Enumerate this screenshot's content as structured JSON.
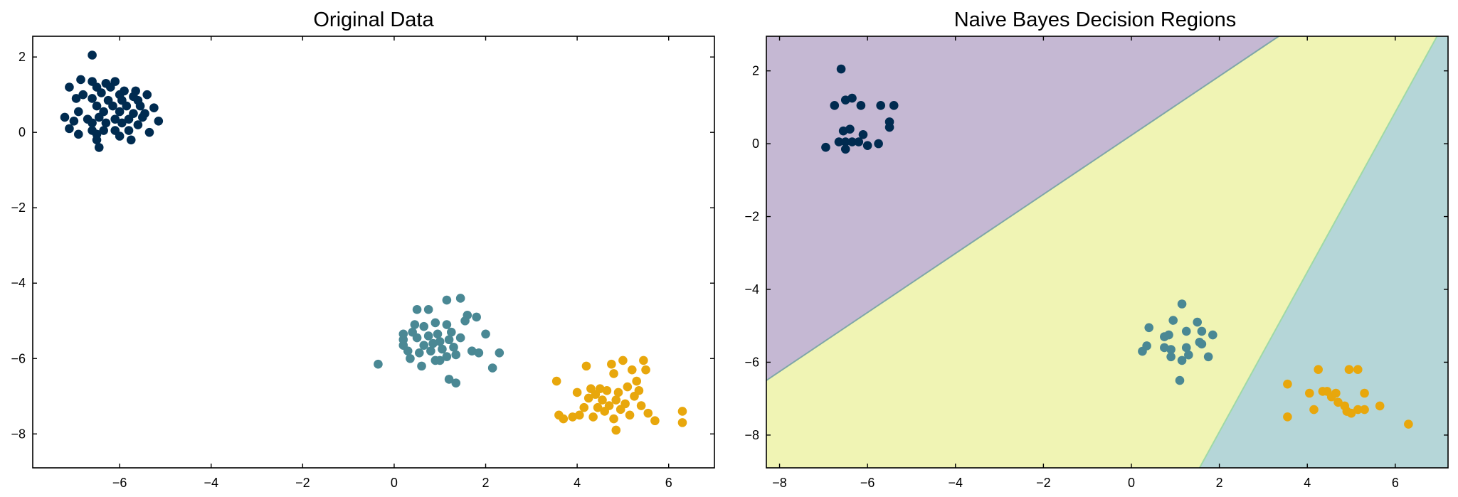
{
  "chart_data": [
    {
      "type": "scatter",
      "title": "Original Data",
      "xlabel": "",
      "ylabel": "",
      "xlim": [
        -7.9,
        7.0
      ],
      "ylim": [
        -8.9,
        2.55
      ],
      "xticks": [
        -6,
        -4,
        -2,
        0,
        2,
        4,
        6
      ],
      "yticks": [
        -8,
        -6,
        -4,
        -2,
        0,
        2
      ],
      "xtick_labels": [
        "−6",
        "−4",
        "−2",
        "0",
        "2",
        "4",
        "6"
      ],
      "ytick_labels": [
        "−8",
        "−6",
        "−4",
        "−2",
        "0",
        "2"
      ],
      "grid": false,
      "series": [
        {
          "color": "#002b50",
          "points": [
            [
              -6.6,
              2.05
            ],
            [
              -7.1,
              1.2
            ],
            [
              -6.85,
              1.4
            ],
            [
              -6.6,
              1.35
            ],
            [
              -6.3,
              1.3
            ],
            [
              -6.1,
              1.35
            ],
            [
              -6.5,
              1.2
            ],
            [
              -6.2,
              1.2
            ],
            [
              -5.9,
              1.1
            ],
            [
              -5.65,
              1.1
            ],
            [
              -5.4,
              1.0
            ],
            [
              -6.8,
              1.0
            ],
            [
              -6.4,
              1.05
            ],
            [
              -6.0,
              1.0
            ],
            [
              -5.7,
              0.95
            ],
            [
              -6.95,
              0.9
            ],
            [
              -6.6,
              0.9
            ],
            [
              -6.25,
              0.85
            ],
            [
              -5.95,
              0.85
            ],
            [
              -5.6,
              0.85
            ],
            [
              -6.5,
              0.7
            ],
            [
              -6.15,
              0.7
            ],
            [
              -5.85,
              0.7
            ],
            [
              -5.55,
              0.7
            ],
            [
              -5.25,
              0.65
            ],
            [
              -6.9,
              0.55
            ],
            [
              -6.35,
              0.55
            ],
            [
              -6.0,
              0.55
            ],
            [
              -5.7,
              0.5
            ],
            [
              -5.45,
              0.5
            ],
            [
              -7.2,
              0.4
            ],
            [
              -6.7,
              0.35
            ],
            [
              -6.45,
              0.4
            ],
            [
              -6.1,
              0.35
            ],
            [
              -5.8,
              0.35
            ],
            [
              -5.5,
              0.4
            ],
            [
              -7.0,
              0.3
            ],
            [
              -6.6,
              0.25
            ],
            [
              -6.3,
              0.25
            ],
            [
              -5.95,
              0.25
            ],
            [
              -5.6,
              0.2
            ],
            [
              -5.15,
              0.3
            ],
            [
              -7.1,
              0.1
            ],
            [
              -6.6,
              0.05
            ],
            [
              -6.35,
              0.05
            ],
            [
              -6.1,
              0.05
            ],
            [
              -5.8,
              0.05
            ],
            [
              -5.35,
              0.0
            ],
            [
              -6.9,
              -0.05
            ],
            [
              -6.5,
              -0.05
            ],
            [
              -6.0,
              -0.1
            ],
            [
              -5.75,
              -0.2
            ],
            [
              -6.5,
              -0.2
            ],
            [
              -6.45,
              -0.4
            ]
          ]
        },
        {
          "color": "#4a8894",
          "points": [
            [
              -0.35,
              -6.15
            ],
            [
              0.2,
              -5.35
            ],
            [
              0.4,
              -5.3
            ],
            [
              0.2,
              -5.5
            ],
            [
              0.2,
              -5.65
            ],
            [
              0.3,
              -5.8
            ],
            [
              0.35,
              -6.0
            ],
            [
              0.5,
              -4.7
            ],
            [
              0.75,
              -4.7
            ],
            [
              0.45,
              -5.1
            ],
            [
              0.65,
              -5.15
            ],
            [
              0.9,
              -5.05
            ],
            [
              1.15,
              -5.1
            ],
            [
              0.5,
              -5.45
            ],
            [
              0.75,
              -5.4
            ],
            [
              0.95,
              -5.35
            ],
            [
              1.25,
              -5.3
            ],
            [
              0.65,
              -5.65
            ],
            [
              0.85,
              -5.6
            ],
            [
              1.0,
              -5.55
            ],
            [
              1.2,
              -5.5
            ],
            [
              1.45,
              -5.45
            ],
            [
              0.55,
              -5.85
            ],
            [
              0.8,
              -5.8
            ],
            [
              1.05,
              -5.75
            ],
            [
              1.3,
              -5.7
            ],
            [
              0.6,
              -6.2
            ],
            [
              0.9,
              -6.05
            ],
            [
              1.15,
              -5.95
            ],
            [
              1.35,
              -5.9
            ],
            [
              1.15,
              -4.45
            ],
            [
              1.45,
              -4.4
            ],
            [
              1.6,
              -4.85
            ],
            [
              1.8,
              -4.9
            ],
            [
              2.0,
              -5.35
            ],
            [
              1.55,
              -5.0
            ],
            [
              1.2,
              -6.55
            ],
            [
              1.35,
              -6.65
            ],
            [
              1.7,
              -5.8
            ],
            [
              1.85,
              -5.85
            ],
            [
              2.3,
              -5.85
            ],
            [
              2.15,
              -6.25
            ],
            [
              1.0,
              -6.05
            ]
          ]
        },
        {
          "color": "#e8a70c",
          "points": [
            [
              3.55,
              -6.6
            ],
            [
              3.6,
              -7.5
            ],
            [
              3.7,
              -7.6
            ],
            [
              3.9,
              -7.55
            ],
            [
              4.0,
              -6.9
            ],
            [
              4.05,
              -7.5
            ],
            [
              4.15,
              -7.3
            ],
            [
              4.2,
              -6.2
            ],
            [
              4.25,
              -7.05
            ],
            [
              4.3,
              -6.8
            ],
            [
              4.35,
              -7.55
            ],
            [
              4.4,
              -6.95
            ],
            [
              4.45,
              -7.3
            ],
            [
              4.5,
              -6.8
            ],
            [
              4.55,
              -7.1
            ],
            [
              4.6,
              -7.4
            ],
            [
              4.65,
              -6.85
            ],
            [
              4.7,
              -7.25
            ],
            [
              4.75,
              -6.15
            ],
            [
              4.8,
              -6.4
            ],
            [
              4.8,
              -7.6
            ],
            [
              4.85,
              -7.1
            ],
            [
              4.9,
              -6.9
            ],
            [
              4.95,
              -7.35
            ],
            [
              5.0,
              -6.05
            ],
            [
              5.05,
              -7.2
            ],
            [
              5.1,
              -6.75
            ],
            [
              5.15,
              -7.5
            ],
            [
              5.2,
              -6.3
            ],
            [
              5.25,
              -7.0
            ],
            [
              5.3,
              -6.6
            ],
            [
              5.35,
              -6.85
            ],
            [
              5.4,
              -7.25
            ],
            [
              5.45,
              -6.05
            ],
            [
              5.5,
              -6.3
            ],
            [
              5.55,
              -7.45
            ],
            [
              5.7,
              -7.65
            ],
            [
              4.85,
              -7.9
            ],
            [
              6.3,
              -7.4
            ],
            [
              6.3,
              -7.7
            ]
          ]
        }
      ]
    },
    {
      "type": "scatter",
      "title": "Naive Bayes Decision Regions",
      "xlabel": "",
      "ylabel": "",
      "xlim": [
        -8.3,
        7.2
      ],
      "ylim": [
        -8.9,
        2.95
      ],
      "xticks": [
        -8,
        -6,
        -4,
        -2,
        0,
        2,
        4,
        6
      ],
      "yticks": [
        -8,
        -6,
        -4,
        -2,
        0,
        2
      ],
      "xtick_labels": [
        "−8",
        "−6",
        "−4",
        "−2",
        "0",
        "2",
        "4",
        "6"
      ],
      "ytick_labels": [
        "−8",
        "−6",
        "−4",
        "−2",
        "0",
        "2"
      ],
      "grid": false,
      "regions": [
        {
          "class": 0,
          "color": "#c5b8d3"
        },
        {
          "class": 1,
          "color": "#f0f4b4"
        },
        {
          "class": 2,
          "color": "#b5d6d8"
        }
      ],
      "boundaries": [
        [
          [
            -8.3,
            -6.5
          ],
          [
            3.35,
            2.95
          ]
        ],
        [
          [
            1.55,
            -8.9
          ],
          [
            6.95,
            2.95
          ]
        ]
      ],
      "series": [
        {
          "color": "#002b50",
          "points": [
            [
              -6.6,
              2.05
            ],
            [
              -6.5,
              1.2
            ],
            [
              -6.35,
              1.25
            ],
            [
              -6.15,
              1.05
            ],
            [
              -6.75,
              1.05
            ],
            [
              -5.7,
              1.05
            ],
            [
              -5.4,
              1.05
            ],
            [
              -5.5,
              0.6
            ],
            [
              -5.5,
              0.45
            ],
            [
              -6.55,
              0.35
            ],
            [
              -6.4,
              0.4
            ],
            [
              -6.65,
              0.05
            ],
            [
              -6.5,
              0.05
            ],
            [
              -6.35,
              0.05
            ],
            [
              -6.2,
              0.05
            ],
            [
              -6.1,
              0.25
            ],
            [
              -5.75,
              0.0
            ],
            [
              -6.0,
              -0.05
            ],
            [
              -6.95,
              -0.1
            ],
            [
              -6.5,
              -0.15
            ]
          ]
        },
        {
          "color": "#4a8894",
          "points": [
            [
              1.15,
              -4.4
            ],
            [
              0.4,
              -5.05
            ],
            [
              0.95,
              -4.85
            ],
            [
              1.5,
              -4.9
            ],
            [
              1.6,
              -5.15
            ],
            [
              1.25,
              -5.15
            ],
            [
              0.85,
              -5.25
            ],
            [
              0.75,
              -5.3
            ],
            [
              1.85,
              -5.25
            ],
            [
              1.55,
              -5.45
            ],
            [
              1.6,
              -5.5
            ],
            [
              0.25,
              -5.7
            ],
            [
              0.35,
              -5.55
            ],
            [
              0.75,
              -5.6
            ],
            [
              0.9,
              -5.65
            ],
            [
              1.25,
              -5.6
            ],
            [
              0.9,
              -5.85
            ],
            [
              1.3,
              -5.8
            ],
            [
              1.75,
              -5.85
            ],
            [
              1.15,
              -5.95
            ],
            [
              1.1,
              -6.5
            ]
          ]
        },
        {
          "color": "#e8a70c",
          "points": [
            [
              4.25,
              -6.2
            ],
            [
              4.95,
              -6.2
            ],
            [
              5.15,
              -6.2
            ],
            [
              3.55,
              -6.6
            ],
            [
              4.45,
              -6.8
            ],
            [
              4.65,
              -6.85
            ],
            [
              4.05,
              -6.85
            ],
            [
              4.35,
              -6.8
            ],
            [
              4.55,
              -6.95
            ],
            [
              5.3,
              -6.85
            ],
            [
              4.7,
              -7.1
            ],
            [
              4.85,
              -7.2
            ],
            [
              5.65,
              -7.2
            ],
            [
              5.3,
              -7.3
            ],
            [
              4.15,
              -7.3
            ],
            [
              4.9,
              -7.35
            ],
            [
              5.0,
              -7.4
            ],
            [
              5.15,
              -7.3
            ],
            [
              3.55,
              -7.5
            ],
            [
              6.3,
              -7.7
            ]
          ]
        }
      ]
    }
  ]
}
